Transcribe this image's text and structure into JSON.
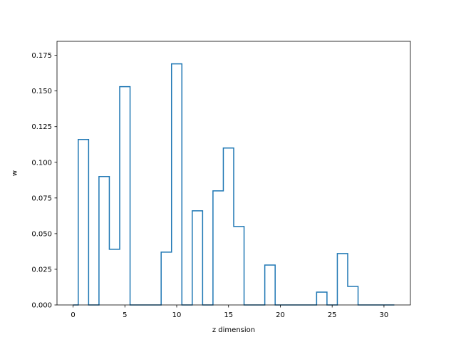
{
  "chart_data": {
    "type": "step",
    "title": "",
    "xlabel": "z dimension",
    "ylabel": "w",
    "xlim": [
      -1.55,
      32.55
    ],
    "ylim": [
      0,
      0.1848
    ],
    "xticks": [
      0,
      5,
      10,
      15,
      20,
      25,
      30
    ],
    "xtick_labels": [
      "0",
      "5",
      "10",
      "15",
      "20",
      "25",
      "30"
    ],
    "yticks": [
      0.0,
      0.025,
      0.05,
      0.075,
      0.1,
      0.125,
      0.15,
      0.175
    ],
    "ytick_labels": [
      "0.000",
      "0.025",
      "0.050",
      "0.075",
      "0.100",
      "0.125",
      "0.150",
      "0.175"
    ],
    "grid": false,
    "step_where": "mid",
    "series": [
      {
        "color": "#1f77b4",
        "x": [
          0,
          1,
          2,
          3,
          4,
          5,
          6,
          7,
          8,
          9,
          10,
          11,
          12,
          13,
          14,
          15,
          16,
          17,
          18,
          19,
          20,
          21,
          22,
          23,
          24,
          25,
          26,
          27,
          28,
          29,
          30,
          31
        ],
        "values": [
          0.0,
          0.116,
          0.0,
          0.09,
          0.039,
          0.153,
          0.0,
          0.0,
          0.0,
          0.037,
          0.169,
          0.0,
          0.066,
          0.0,
          0.08,
          0.11,
          0.055,
          0.0,
          0.0,
          0.028,
          0.0,
          0.0,
          0.0,
          0.0,
          0.009,
          0.0,
          0.036,
          0.013,
          0.0,
          0.0,
          0.0,
          0.0
        ]
      }
    ]
  }
}
